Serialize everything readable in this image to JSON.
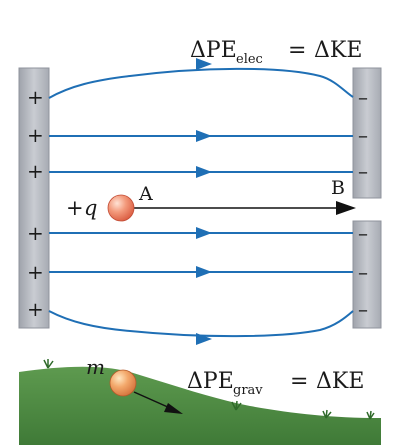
{
  "top_equation": {
    "lhs_main": "ΔPE",
    "lhs_sub": "elec",
    "equals": "=",
    "rhs": "ΔKE"
  },
  "bottom_equation": {
    "lhs_main": "ΔPE",
    "lhs_sub": "grav",
    "equals": "=",
    "rhs": "ΔKE"
  },
  "plates": {
    "left_sign": "+",
    "right_sign": "–",
    "left_sign_count": 6,
    "right_sign_count": 6
  },
  "charge": {
    "label_sign": "+",
    "label_var": "q",
    "point_a": "A",
    "point_b": "B"
  },
  "mass_label": "m",
  "colors": {
    "field_line": "#1f6fb5",
    "plate_fill": "#b9bcc4",
    "plate_edge": "#8f939c",
    "ball": "#f08a6e",
    "ground": "#4f8a45",
    "grass": "#3b7a35",
    "arrow": "#111111"
  }
}
